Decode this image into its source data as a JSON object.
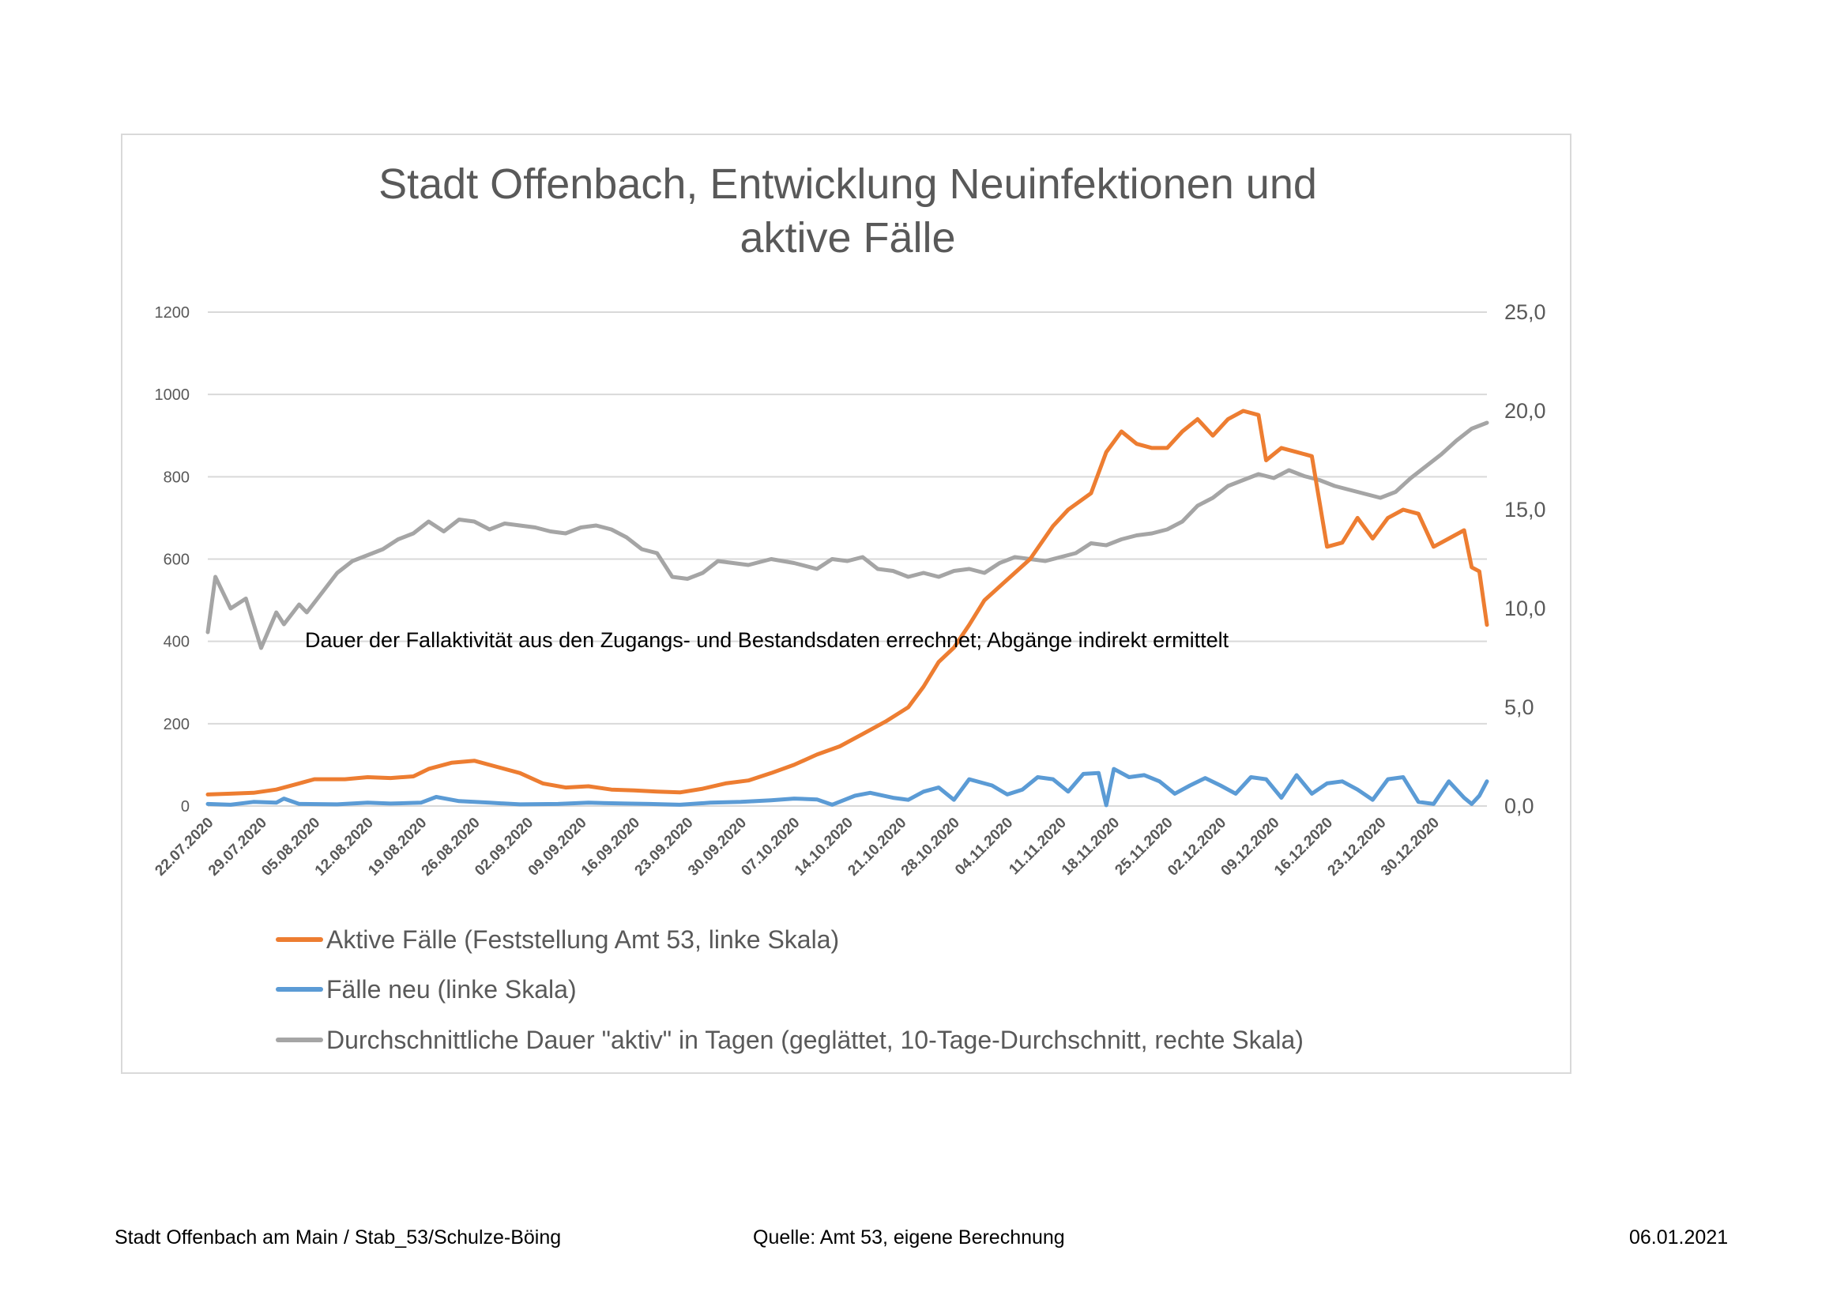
{
  "footer": {
    "author": "Stadt Offenbach am Main / Stab_53/Schulze-Böing",
    "source": "Quelle: Amt 53, eigene Berechnung",
    "date": "06.01.2021"
  },
  "chart_data": {
    "type": "line",
    "title_line1": "Stadt Offenbach, Entwicklung Neuinfektionen und",
    "title_line2": "aktive Fälle",
    "annotation": "Dauer der Fallaktivität aus den Zugangs- und Bestandsdaten errechnet; Abgänge indirekt ermittelt",
    "y_left": {
      "ticks": [
        "1200",
        "1000",
        "800",
        "600",
        "400",
        "200",
        "0"
      ],
      "range": [
        0,
        1200
      ]
    },
    "y_right": {
      "ticks": [
        "25,0",
        "20,0",
        "15,0",
        "10,0",
        "5,0",
        "0,0"
      ],
      "range": [
        0,
        25
      ]
    },
    "x_start": "22.07.2020",
    "x_end": "06.01.2021",
    "x_ticks": [
      "22.07.2020",
      "29.07.2020",
      "05.08.2020",
      "12.08.2020",
      "19.08.2020",
      "26.08.2020",
      "02.09.2020",
      "09.09.2020",
      "16.09.2020",
      "23.09.2020",
      "30.09.2020",
      "07.10.2020",
      "14.10.2020",
      "21.10.2020",
      "28.10.2020",
      "04.11.2020",
      "11.11.2020",
      "18.11.2020",
      "25.11.2020",
      "02.12.2020",
      "09.12.2020",
      "16.12.2020",
      "23.12.2020",
      "30.12.2020"
    ],
    "grid": true,
    "legend_position": "bottom",
    "series": [
      {
        "name": "Aktive Fälle (Feststellung Amt 53, linke Skala)",
        "axis": "left",
        "color": "#ed7d31",
        "points": [
          [
            "22.07.2020",
            28
          ],
          [
            "25.07.2020",
            30
          ],
          [
            "28.07.2020",
            32
          ],
          [
            "31.07.2020",
            40
          ],
          [
            "03.08.2020",
            55
          ],
          [
            "05.08.2020",
            65
          ],
          [
            "09.08.2020",
            65
          ],
          [
            "12.08.2020",
            70
          ],
          [
            "15.08.2020",
            68
          ],
          [
            "18.08.2020",
            72
          ],
          [
            "20.08.2020",
            90
          ],
          [
            "23.08.2020",
            105
          ],
          [
            "26.08.2020",
            110
          ],
          [
            "29.08.2020",
            95
          ],
          [
            "01.09.2020",
            80
          ],
          [
            "04.09.2020",
            55
          ],
          [
            "07.09.2020",
            45
          ],
          [
            "10.09.2020",
            48
          ],
          [
            "13.09.2020",
            40
          ],
          [
            "16.09.2020",
            38
          ],
          [
            "19.09.2020",
            35
          ],
          [
            "22.09.2020",
            33
          ],
          [
            "25.09.2020",
            42
          ],
          [
            "28.09.2020",
            55
          ],
          [
            "01.10.2020",
            62
          ],
          [
            "04.10.2020",
            80
          ],
          [
            "07.10.2020",
            100
          ],
          [
            "10.10.2020",
            125
          ],
          [
            "13.10.2020",
            145
          ],
          [
            "16.10.2020",
            175
          ],
          [
            "19.10.2020",
            205
          ],
          [
            "22.10.2020",
            240
          ],
          [
            "24.10.2020",
            290
          ],
          [
            "26.10.2020",
            350
          ],
          [
            "28.10.2020",
            385
          ],
          [
            "30.10.2020",
            440
          ],
          [
            "01.11.2020",
            500
          ],
          [
            "04.11.2020",
            550
          ],
          [
            "07.11.2020",
            600
          ],
          [
            "10.11.2020",
            680
          ],
          [
            "12.11.2020",
            720
          ],
          [
            "15.11.2020",
            760
          ],
          [
            "17.11.2020",
            860
          ],
          [
            "19.11.2020",
            910
          ],
          [
            "21.11.2020",
            880
          ],
          [
            "23.11.2020",
            870
          ],
          [
            "25.11.2020",
            870
          ],
          [
            "27.11.2020",
            910
          ],
          [
            "29.11.2020",
            940
          ],
          [
            "01.12.2020",
            900
          ],
          [
            "03.12.2020",
            940
          ],
          [
            "05.12.2020",
            960
          ],
          [
            "07.12.2020",
            950
          ],
          [
            "08.12.2020",
            840
          ],
          [
            "10.12.2020",
            870
          ],
          [
            "12.12.2020",
            860
          ],
          [
            "14.12.2020",
            850
          ],
          [
            "16.12.2020",
            630
          ],
          [
            "18.12.2020",
            640
          ],
          [
            "20.12.2020",
            700
          ],
          [
            "22.12.2020",
            650
          ],
          [
            "24.12.2020",
            700
          ],
          [
            "26.12.2020",
            720
          ],
          [
            "28.12.2020",
            710
          ],
          [
            "30.12.2020",
            630
          ],
          [
            "01.01.2021",
            650
          ],
          [
            "03.01.2021",
            670
          ],
          [
            "04.01.2021",
            580
          ],
          [
            "05.01.2021",
            570
          ],
          [
            "06.01.2021",
            440
          ]
        ]
      },
      {
        "name": "Fälle neu (linke Skala)",
        "axis": "left",
        "color": "#5b9bd5",
        "points": [
          [
            "22.07.2020",
            5
          ],
          [
            "25.07.2020",
            3
          ],
          [
            "28.07.2020",
            10
          ],
          [
            "31.07.2020",
            8
          ],
          [
            "01.08.2020",
            18
          ],
          [
            "03.08.2020",
            5
          ],
          [
            "08.08.2020",
            4
          ],
          [
            "12.08.2020",
            8
          ],
          [
            "15.08.2020",
            6
          ],
          [
            "19.08.2020",
            8
          ],
          [
            "21.08.2020",
            22
          ],
          [
            "24.08.2020",
            12
          ],
          [
            "28.08.2020",
            8
          ],
          [
            "01.09.2020",
            4
          ],
          [
            "06.09.2020",
            5
          ],
          [
            "10.09.2020",
            8
          ],
          [
            "15.09.2020",
            6
          ],
          [
            "18.09.2020",
            5
          ],
          [
            "22.09.2020",
            3
          ],
          [
            "26.09.2020",
            8
          ],
          [
            "30.09.2020",
            10
          ],
          [
            "04.10.2020",
            14
          ],
          [
            "07.10.2020",
            18
          ],
          [
            "10.10.2020",
            16
          ],
          [
            "12.10.2020",
            3
          ],
          [
            "15.10.2020",
            25
          ],
          [
            "17.10.2020",
            32
          ],
          [
            "20.10.2020",
            20
          ],
          [
            "22.10.2020",
            15
          ],
          [
            "24.10.2020",
            35
          ],
          [
            "26.10.2020",
            45
          ],
          [
            "28.10.2020",
            15
          ],
          [
            "30.10.2020",
            65
          ],
          [
            "02.11.2020",
            50
          ],
          [
            "04.11.2020",
            28
          ],
          [
            "06.11.2020",
            40
          ],
          [
            "08.11.2020",
            70
          ],
          [
            "10.11.2020",
            65
          ],
          [
            "12.11.2020",
            35
          ],
          [
            "14.11.2020",
            78
          ],
          [
            "16.11.2020",
            80
          ],
          [
            "17.11.2020",
            2
          ],
          [
            "18.11.2020",
            90
          ],
          [
            "20.11.2020",
            70
          ],
          [
            "22.11.2020",
            75
          ],
          [
            "24.11.2020",
            60
          ],
          [
            "26.11.2020",
            30
          ],
          [
            "28.11.2020",
            50
          ],
          [
            "30.11.2020",
            68
          ],
          [
            "02.12.2020",
            50
          ],
          [
            "04.12.2020",
            30
          ],
          [
            "06.12.2020",
            70
          ],
          [
            "08.12.2020",
            65
          ],
          [
            "10.12.2020",
            20
          ],
          [
            "12.12.2020",
            75
          ],
          [
            "14.12.2020",
            30
          ],
          [
            "16.12.2020",
            55
          ],
          [
            "18.12.2020",
            60
          ],
          [
            "20.12.2020",
            40
          ],
          [
            "22.12.2020",
            15
          ],
          [
            "24.12.2020",
            65
          ],
          [
            "26.12.2020",
            70
          ],
          [
            "28.12.2020",
            10
          ],
          [
            "30.12.2020",
            5
          ],
          [
            "01.01.2021",
            60
          ],
          [
            "03.01.2021",
            20
          ],
          [
            "04.01.2021",
            5
          ],
          [
            "05.01.2021",
            25
          ],
          [
            "06.01.2021",
            60
          ]
        ]
      },
      {
        "name": "Durchschnittliche Dauer \"aktiv\" in Tagen (geglättet, 10-Tage-Durchschnitt, rechte Skala)",
        "axis": "right",
        "color": "#a5a5a5",
        "points": [
          [
            "22.07.2020",
            8.8
          ],
          [
            "23.07.2020",
            11.6
          ],
          [
            "25.07.2020",
            10.0
          ],
          [
            "27.07.2020",
            10.5
          ],
          [
            "29.07.2020",
            8.0
          ],
          [
            "31.07.2020",
            9.8
          ],
          [
            "01.08.2020",
            9.2
          ],
          [
            "03.08.2020",
            10.2
          ],
          [
            "04.08.2020",
            9.8
          ],
          [
            "06.08.2020",
            10.8
          ],
          [
            "08.08.2020",
            11.8
          ],
          [
            "10.08.2020",
            12.4
          ],
          [
            "12.08.2020",
            12.7
          ],
          [
            "14.08.2020",
            13.0
          ],
          [
            "16.08.2020",
            13.5
          ],
          [
            "18.08.2020",
            13.8
          ],
          [
            "20.08.2020",
            14.4
          ],
          [
            "22.08.2020",
            13.9
          ],
          [
            "24.08.2020",
            14.5
          ],
          [
            "26.08.2020",
            14.4
          ],
          [
            "28.08.2020",
            14.0
          ],
          [
            "30.08.2020",
            14.3
          ],
          [
            "01.09.2020",
            14.2
          ],
          [
            "03.09.2020",
            14.1
          ],
          [
            "05.09.2020",
            13.9
          ],
          [
            "07.09.2020",
            13.8
          ],
          [
            "09.09.2020",
            14.1
          ],
          [
            "11.09.2020",
            14.2
          ],
          [
            "13.09.2020",
            14.0
          ],
          [
            "15.09.2020",
            13.6
          ],
          [
            "17.09.2020",
            13.0
          ],
          [
            "19.09.2020",
            12.8
          ],
          [
            "21.09.2020",
            11.6
          ],
          [
            "23.09.2020",
            11.5
          ],
          [
            "25.09.2020",
            11.8
          ],
          [
            "27.09.2020",
            12.4
          ],
          [
            "29.09.2020",
            12.3
          ],
          [
            "01.10.2020",
            12.2
          ],
          [
            "04.10.2020",
            12.5
          ],
          [
            "07.10.2020",
            12.3
          ],
          [
            "10.10.2020",
            12.0
          ],
          [
            "12.10.2020",
            12.5
          ],
          [
            "14.10.2020",
            12.4
          ],
          [
            "16.10.2020",
            12.6
          ],
          [
            "18.10.2020",
            12.0
          ],
          [
            "20.10.2020",
            11.9
          ],
          [
            "22.10.2020",
            11.6
          ],
          [
            "24.10.2020",
            11.8
          ],
          [
            "26.10.2020",
            11.6
          ],
          [
            "28.10.2020",
            11.9
          ],
          [
            "30.10.2020",
            12.0
          ],
          [
            "01.11.2020",
            11.8
          ],
          [
            "03.11.2020",
            12.3
          ],
          [
            "05.11.2020",
            12.6
          ],
          [
            "07.11.2020",
            12.5
          ],
          [
            "09.11.2020",
            12.4
          ],
          [
            "11.11.2020",
            12.6
          ],
          [
            "13.11.2020",
            12.8
          ],
          [
            "15.11.2020",
            13.3
          ],
          [
            "17.11.2020",
            13.2
          ],
          [
            "19.11.2020",
            13.5
          ],
          [
            "21.11.2020",
            13.7
          ],
          [
            "23.11.2020",
            13.8
          ],
          [
            "25.11.2020",
            14.0
          ],
          [
            "27.11.2020",
            14.4
          ],
          [
            "29.11.2020",
            15.2
          ],
          [
            "01.12.2020",
            15.6
          ],
          [
            "03.12.2020",
            16.2
          ],
          [
            "05.12.2020",
            16.5
          ],
          [
            "07.12.2020",
            16.8
          ],
          [
            "09.12.2020",
            16.6
          ],
          [
            "11.12.2020",
            17.0
          ],
          [
            "13.12.2020",
            16.7
          ],
          [
            "15.12.2020",
            16.5
          ],
          [
            "17.12.2020",
            16.2
          ],
          [
            "19.12.2020",
            16.0
          ],
          [
            "21.12.2020",
            15.8
          ],
          [
            "23.12.2020",
            15.6
          ],
          [
            "25.12.2020",
            15.9
          ],
          [
            "27.12.2020",
            16.6
          ],
          [
            "29.12.2020",
            17.2
          ],
          [
            "31.12.2020",
            17.8
          ],
          [
            "02.01.2021",
            18.5
          ],
          [
            "04.01.2021",
            19.1
          ],
          [
            "06.01.2021",
            19.4
          ]
        ]
      }
    ]
  }
}
